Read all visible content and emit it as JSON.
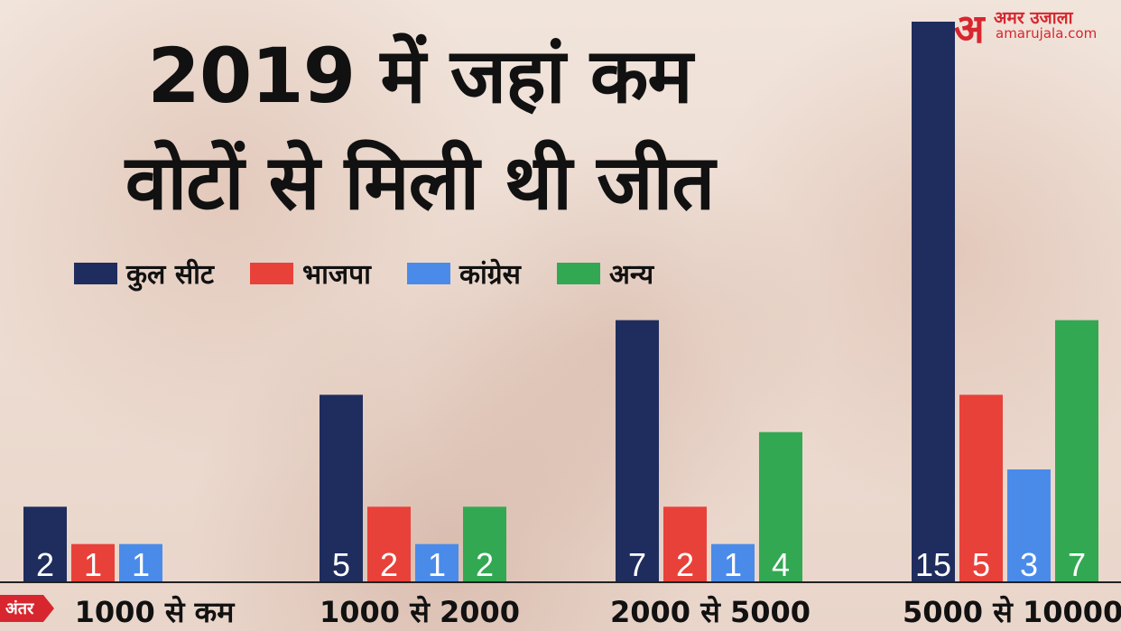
{
  "brand": {
    "glyph": "अ",
    "name": "अमर उजाला",
    "url": "amarujala.com"
  },
  "title_line1": "2019 में जहां कम",
  "title_line2": "वोटों से मिली थी जीत",
  "axis_badge": "अंतर",
  "colors": {
    "total": "#1f2d5e",
    "bjp": "#e8413a",
    "congress": "#4a8bea",
    "others": "#33a852",
    "badge": "#d7262e"
  },
  "chart_data": {
    "type": "bar",
    "title": "2019 में जहां कम वोटों से मिली थी जीत",
    "xlabel": "अंतर",
    "ylabel": "",
    "categories": [
      "1000 से कम",
      "1000 से 2000",
      "2000 से 5000",
      "5000 से 10000"
    ],
    "series": [
      {
        "name": "कुल सीट",
        "color": "#1f2d5e",
        "values": [
          2,
          5,
          7,
          15
        ]
      },
      {
        "name": "भाजपा",
        "color": "#e8413a",
        "values": [
          1,
          2,
          2,
          5
        ]
      },
      {
        "name": "कांग्रेस",
        "color": "#4a8bea",
        "values": [
          1,
          1,
          1,
          3
        ]
      },
      {
        "name": "अन्य",
        "color": "#33a852",
        "values": [
          0,
          2,
          4,
          7
        ]
      }
    ],
    "ylim": [
      0,
      15
    ],
    "grid": false,
    "legend": "top-left",
    "data_labels": true
  }
}
